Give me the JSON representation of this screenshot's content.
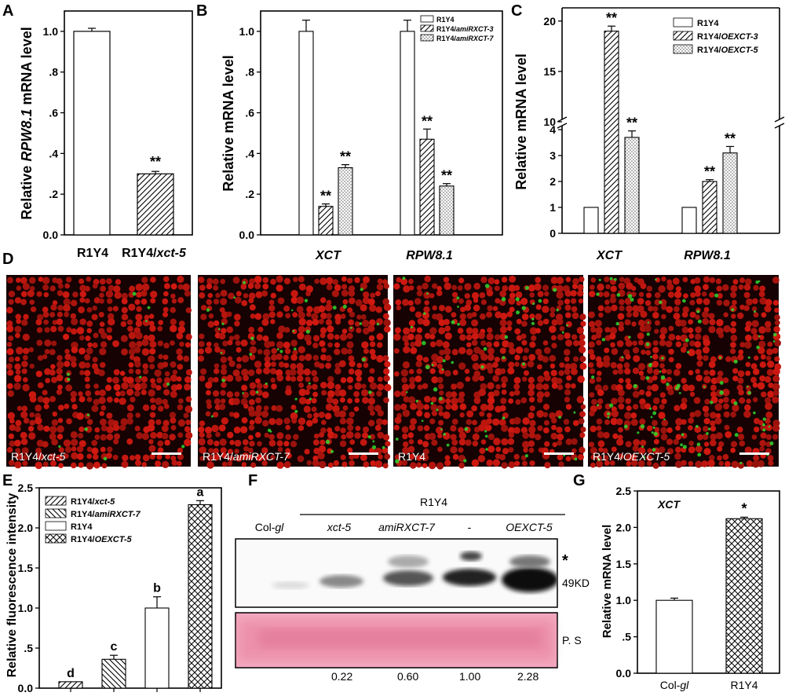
{
  "chart_data": [
    {
      "panel": "A",
      "type": "bar",
      "categories": [
        "R1Y4",
        "R1Y4/xct-5"
      ],
      "values": [
        1.0,
        0.3
      ],
      "errors": [
        0.015,
        0.012
      ],
      "annotations": [
        "",
        "**"
      ],
      "ylabel_parts": [
        "Relative ",
        "RPW8.1",
        " mRNA level"
      ],
      "ylim": [
        0,
        1.1
      ],
      "yticks": [
        "0.0",
        ".2",
        ".4",
        ".6",
        ".8",
        "1.0"
      ],
      "cat_label_parts": [
        [
          "R1Y4",
          ""
        ],
        [
          "R1Y4/",
          "xct-5"
        ]
      ]
    },
    {
      "panel": "B",
      "type": "bar",
      "categories": [
        "XCT",
        "RPW8.1"
      ],
      "series": [
        {
          "name": "R1Y4",
          "values": [
            1.0,
            1.0
          ],
          "errors": [
            0.055,
            0.055
          ],
          "annotations": [
            "",
            ""
          ]
        },
        {
          "name": "R1Y4/amiRXCT-3",
          "values": [
            0.14,
            0.47
          ],
          "errors": [
            0.012,
            0.05
          ],
          "annotations": [
            "**",
            "**"
          ]
        },
        {
          "name": "R1Y4/amiRXCT-7",
          "values": [
            0.33,
            0.24
          ],
          "errors": [
            0.015,
            0.012
          ],
          "annotations": [
            "**",
            "**"
          ]
        }
      ],
      "ylabel": "Relative mRNA level",
      "ylim": [
        0,
        1.1
      ],
      "yticks": [
        "0.0",
        ".2",
        ".4",
        ".6",
        ".8",
        "1.0"
      ]
    },
    {
      "panel": "C",
      "type": "bar",
      "categories": [
        "XCT",
        "RPW8.1"
      ],
      "series": [
        {
          "name": "R1Y4",
          "values": [
            1.0,
            1.0
          ],
          "errors": [
            0,
            0
          ],
          "annotations": [
            "",
            ""
          ]
        },
        {
          "name": "R1Y4/OEXCT-3",
          "values": [
            19.0,
            2.0
          ],
          "errors": [
            0.5,
            0.07
          ],
          "annotations": [
            "**",
            "**"
          ]
        },
        {
          "name": "R1Y4/OEXCT-5",
          "values": [
            3.7,
            3.1
          ],
          "errors": [
            0.25,
            0.25
          ],
          "annotations": [
            "**",
            "**"
          ]
        }
      ],
      "ylabel": "Relative mRNA level",
      "axis_break": [
        4,
        10
      ],
      "ylim": [
        0,
        21
      ],
      "yticks": [
        "0",
        "1",
        "2",
        "3",
        "4",
        "10",
        "15",
        "20"
      ]
    },
    {
      "panel": "E",
      "type": "bar",
      "categories": [
        "R1Y4/xct-5",
        "R1Y4/amiRXCT-7",
        "R1Y4",
        "R1Y4/OEXCT-5"
      ],
      "values": [
        0.08,
        0.36,
        1.0,
        2.29
      ],
      "errors": [
        0.0,
        0.05,
        0.14,
        0.05
      ],
      "annotations": [
        "d",
        "c",
        "b",
        "a"
      ],
      "ylabel": "Relative fluorescence intensity",
      "ylim": [
        0,
        2.5
      ],
      "yticks": [
        "0.0",
        ".5",
        "1.0",
        "1.5",
        "2.0",
        "2.5"
      ],
      "legend_parts": [
        [
          "R1Y4/",
          "xct-5"
        ],
        [
          "R1Y4/",
          "amiRXCT-7"
        ],
        [
          "R1Y4",
          ""
        ],
        [
          "R1Y4/",
          "OEXCT-5"
        ]
      ]
    },
    {
      "panel": "G",
      "type": "bar",
      "categories": [
        "Col-gl",
        "R1Y4"
      ],
      "values": [
        1.0,
        2.12
      ],
      "errors": [
        0.03,
        0.02
      ],
      "annotations": [
        "",
        "*"
      ],
      "inner_label": "XCT",
      "ylabel": "Relative mRNA level",
      "ylim": [
        0,
        2.5
      ],
      "yticks": [
        "0.0",
        ".5",
        "1.0",
        "1.5",
        "2.0",
        "2.5"
      ],
      "cat_label_parts": [
        [
          "Col-",
          "gl"
        ],
        [
          "R1Y4",
          ""
        ]
      ]
    }
  ],
  "panel_letters": [
    "A",
    "B",
    "C",
    "D",
    "E",
    "F",
    "G"
  ],
  "micrographs": [
    {
      "label_parts": [
        "R1Y4/",
        "xct-5"
      ]
    },
    {
      "label_parts": [
        "R1Y4/",
        "amiRXCT-7"
      ]
    },
    {
      "label_parts": [
        "R1Y4",
        ""
      ]
    },
    {
      "label_parts": [
        "R1Y4/",
        "OEXCT-5"
      ]
    }
  ],
  "blot": {
    "group_label": "R1Y4",
    "lanes": [
      [
        "Col-",
        "gl"
      ],
      [
        "",
        "xct-5"
      ],
      [
        "",
        "amiRXCT-7"
      ],
      [
        "-",
        ""
      ],
      [
        "",
        "OEXCT-5"
      ]
    ],
    "band_marker": "*",
    "size_label": "49KD",
    "stain_label": "P. S",
    "ratios": [
      "0.22",
      "0.60",
      "1.00",
      "2.28"
    ]
  }
}
